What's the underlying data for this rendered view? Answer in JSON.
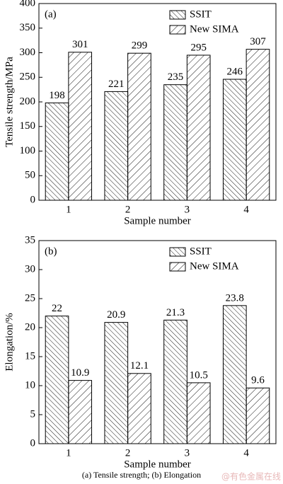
{
  "chart_data": [
    {
      "type": "bar",
      "label": "(a)",
      "categories": [
        "1",
        "2",
        "3",
        "4"
      ],
      "series": [
        {
          "name": "SSIT",
          "color": "#000000",
          "hatch": "backslash",
          "values": [
            198,
            221,
            235,
            246
          ]
        },
        {
          "name": "New SIMA",
          "color": "#000000",
          "hatch": "slash",
          "values": [
            301,
            299,
            295,
            307
          ]
        }
      ],
      "x_label": "Sample number",
      "y_label": "Tensile strength/MPa",
      "ylim": [
        0,
        400
      ],
      "yticks": [
        0,
        50,
        100,
        150,
        200,
        250,
        300,
        350,
        400
      ],
      "legend": "upper right"
    },
    {
      "type": "bar",
      "label": "(b)",
      "categories": [
        "1",
        "2",
        "3",
        "4"
      ],
      "series": [
        {
          "name": "SSIT",
          "color": "#000000",
          "hatch": "backslash",
          "values": [
            22,
            20.9,
            21.3,
            23.8
          ]
        },
        {
          "name": "New SIMA",
          "color": "#000000",
          "hatch": "slash",
          "values": [
            10.9,
            12.1,
            10.5,
            9.6
          ]
        }
      ],
      "x_label": "Sample number",
      "y_label": "Elongation/%",
      "ylim": [
        0,
        35
      ],
      "yticks": [
        0,
        5,
        10,
        15,
        20,
        25,
        30,
        35
      ],
      "legend": "upper right"
    }
  ],
  "caption": "(a) Tensile strength; (b) Elongation",
  "watermark": "@有色金属在线"
}
